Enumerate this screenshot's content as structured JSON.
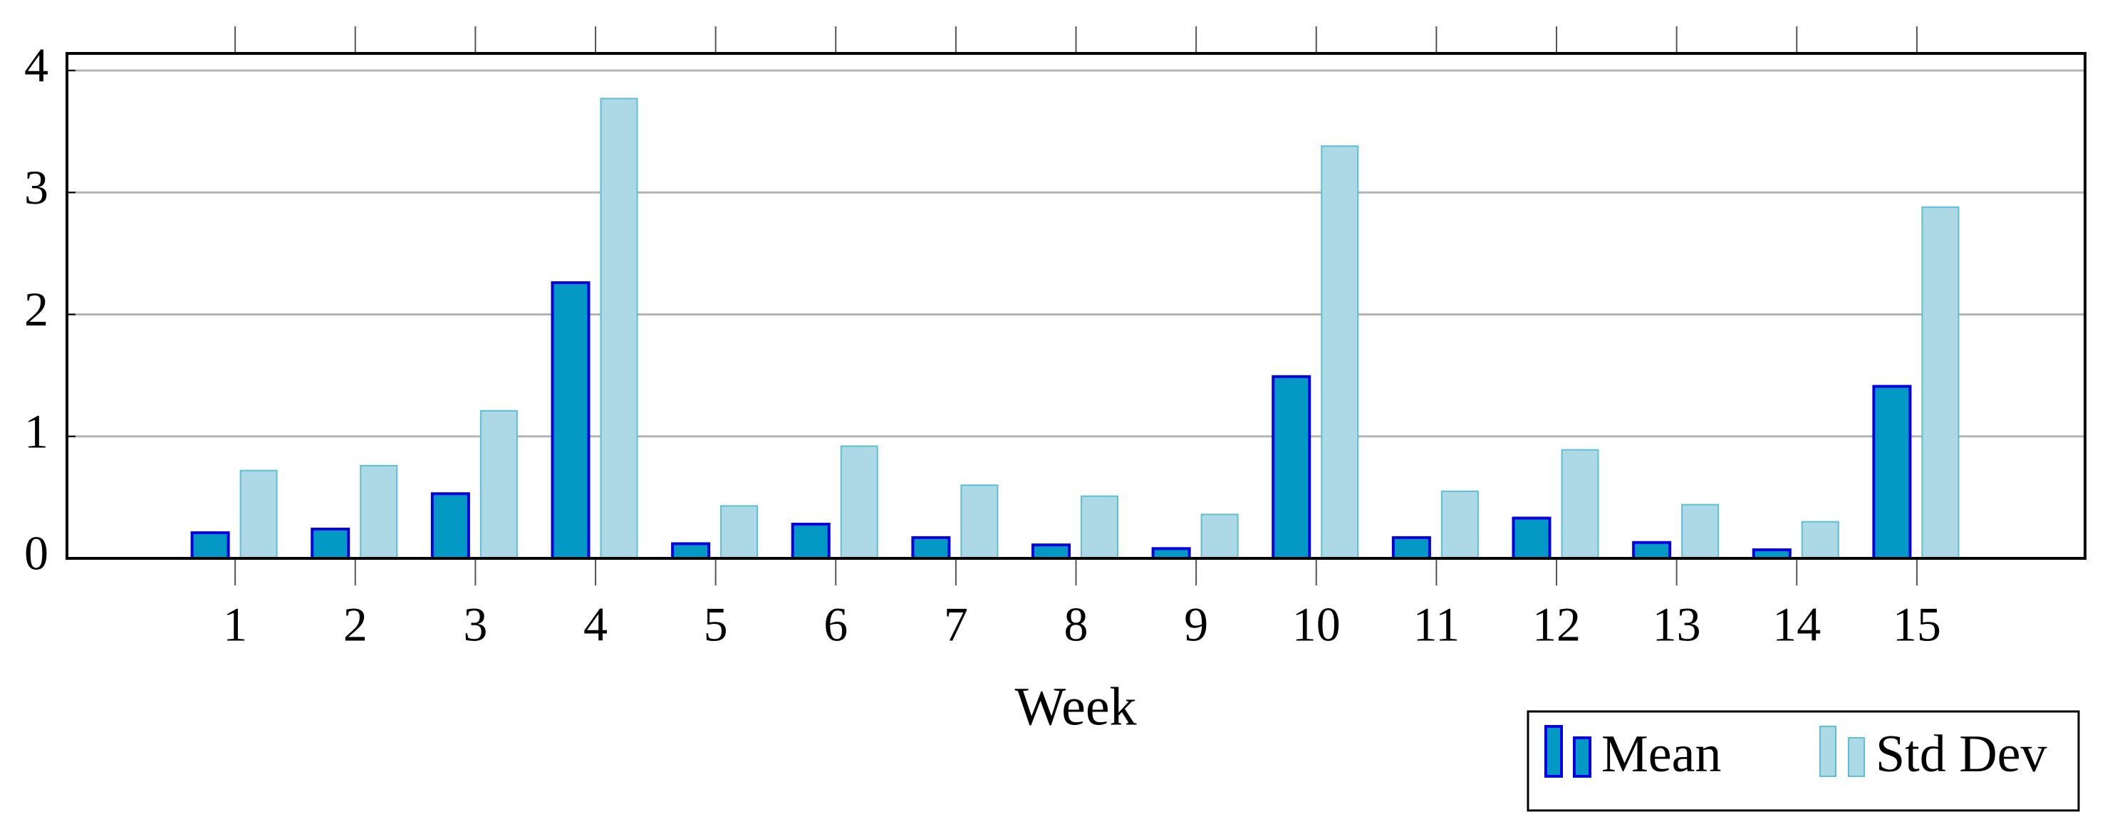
{
  "chart_data": {
    "type": "bar",
    "x_label": "Week",
    "x": [
      1,
      2,
      3,
      4,
      5,
      6,
      7,
      8,
      9,
      10,
      11,
      12,
      13,
      14,
      15
    ],
    "series": [
      {
        "name": "Mean",
        "color": "#0399c4",
        "edge_color": "#0000e0",
        "values": [
          0.21,
          0.24,
          0.53,
          2.26,
          0.12,
          0.28,
          0.17,
          0.11,
          0.08,
          1.49,
          0.17,
          0.33,
          0.13,
          0.07,
          1.41
        ]
      },
      {
        "name": "Std Dev",
        "color": "#add8e6",
        "edge_color": "#5bbfd6",
        "values": [
          0.72,
          0.76,
          1.21,
          3.77,
          0.43,
          0.92,
          0.6,
          0.51,
          0.36,
          3.38,
          0.55,
          0.89,
          0.44,
          0.3,
          2.88
        ]
      }
    ],
    "xlim": [
      -0.4,
      16.4
    ],
    "xticks": [
      1,
      2,
      3,
      4,
      5,
      6,
      7,
      8,
      9,
      10,
      11,
      12,
      13,
      14,
      15
    ],
    "ylim": [
      0,
      4.14
    ],
    "yticks": [
      0,
      1,
      2,
      3,
      4
    ],
    "grid": true,
    "legend": "below-right"
  }
}
